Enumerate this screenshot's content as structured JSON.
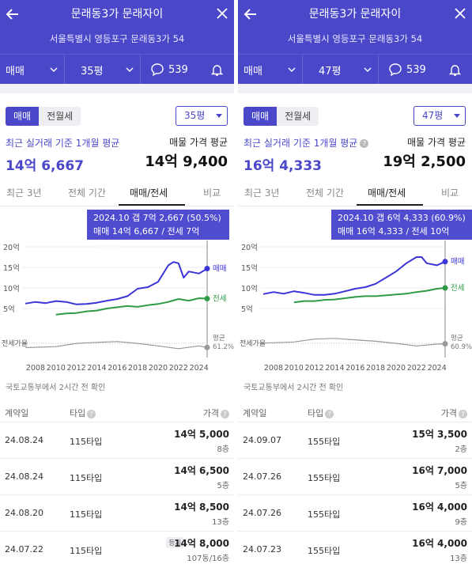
{
  "panels": [
    {
      "title": "문래동3가 문래자이",
      "address": "서울특별시 영등포구 문래동3가 54",
      "toolbar": {
        "deal_type": "매매",
        "size": "35평",
        "comment_count": "539"
      },
      "toggle": {
        "sale": "매매",
        "rent": "전월세"
      },
      "size_select": "35평",
      "recent_label": "최근 실거래 기준 1개월 평균",
      "recent_value": "14억 6,667",
      "ask_label": "매물 가격 평균",
      "ask_value": "14억 9,400",
      "tabs": [
        "최근 3년",
        "전체 기간",
        "매매/전세",
        "비교"
      ],
      "tooltip": {
        "line1": "2024.10  갭 7억 2,667 (50.5%)",
        "line2": "매매 14억 6,667 / 전세 7억 4,000"
      },
      "source": "국토교통부에서 2시간 전 확인",
      "table_headers": {
        "date": "계약일",
        "type": "타입",
        "price": "가격"
      },
      "rows": [
        {
          "date": "24.08.24",
          "type": "115타입",
          "price": "14억 5,000",
          "floor": "8층",
          "tag": ""
        },
        {
          "date": "24.08.24",
          "type": "115타입",
          "price": "14억 6,500",
          "floor": "5층",
          "tag": ""
        },
        {
          "date": "24.08.20",
          "type": "115타입",
          "price": "14억 8,500",
          "floor": "13층",
          "tag": ""
        },
        {
          "date": "24.07.22",
          "type": "115타입",
          "price": "14억 8,000",
          "floor": "107동/16층",
          "tag": "등기"
        }
      ]
    },
    {
      "title": "문래동3가 문래자이",
      "address": "서울특별시 영등포구 문래동3가 54",
      "toolbar": {
        "deal_type": "매매",
        "size": "47평",
        "comment_count": "539"
      },
      "toggle": {
        "sale": "매매",
        "rent": "전월세"
      },
      "size_select": "47평",
      "recent_label": "최근 실거래 기준 1개월 평균",
      "recent_value": "16억 4,333",
      "ask_label": "매물 가격 평균",
      "ask_value": "19억 2,500",
      "tabs": [
        "최근 3년",
        "전체 기간",
        "매매/전세",
        "비교"
      ],
      "tooltip": {
        "line1": "2024.10  갭 6억 4,333 (60.9%)",
        "line2": "매매 16억 4,333 / 전세 10억"
      },
      "source": "국토교통부에서 2시간 전 확인",
      "table_headers": {
        "date": "계약일",
        "type": "타입",
        "price": "가격"
      },
      "rows": [
        {
          "date": "24.09.07",
          "type": "155타입",
          "price": "15억 3,500",
          "floor": "2층",
          "tag": ""
        },
        {
          "date": "24.07.26",
          "type": "155타입",
          "price": "16억 7,000",
          "floor": "5층",
          "tag": ""
        },
        {
          "date": "24.07.26",
          "type": "155타입",
          "price": "16억 4,000",
          "floor": "9층",
          "tag": ""
        },
        {
          "date": "24.07.23",
          "type": "155타입",
          "price": "16억 4,000",
          "floor": "13층",
          "tag": ""
        }
      ]
    }
  ],
  "chart_data": [
    {
      "type": "line",
      "x_ticks": [
        "2008",
        "2010",
        "2012",
        "2014",
        "2016",
        "2018",
        "2020",
        "2022",
        "2024"
      ],
      "y_ticks": [
        "20억",
        "15억",
        "10억",
        "5억"
      ],
      "ylim": [
        0,
        20
      ],
      "series": [
        {
          "name": "매매",
          "x": [
            2007,
            2008,
            2009,
            2010,
            2011,
            2012,
            2013,
            2014,
            2015,
            2016,
            2017,
            2018,
            2019,
            2020,
            2021,
            2021.5,
            2022,
            2022.5,
            2023,
            2024,
            2024.8
          ],
          "values": [
            6.2,
            6.6,
            6.3,
            6.8,
            6.6,
            6.0,
            6.1,
            6.4,
            6.9,
            7.3,
            8.0,
            9.8,
            10.2,
            11.5,
            15.5,
            16.3,
            16.0,
            12.5,
            14.0,
            13.5,
            14.7
          ]
        },
        {
          "name": "전세",
          "x": [
            2010,
            2011,
            2012,
            2013,
            2014,
            2015,
            2016,
            2017,
            2018,
            2019,
            2020,
            2021,
            2022,
            2023,
            2024,
            2024.8
          ],
          "values": [
            3.5,
            3.8,
            3.9,
            4.3,
            4.5,
            5.0,
            5.3,
            5.6,
            5.4,
            5.8,
            6.1,
            6.6,
            7.3,
            6.9,
            7.5,
            7.4
          ]
        },
        {
          "name": "전세가율",
          "x": [
            2007,
            2010,
            2012,
            2014,
            2016,
            2018,
            2020,
            2022,
            2024,
            2024.8
          ],
          "values": [
            50,
            53,
            62,
            65,
            67,
            62,
            55,
            47,
            55,
            50.5
          ]
        }
      ],
      "labels": {
        "sale": "매매",
        "rent": "전세",
        "ratio": "전세가율",
        "avg": "평균",
        "avg_value": "61.2%"
      }
    },
    {
      "type": "line",
      "x_ticks": [
        "2008",
        "2010",
        "2012",
        "2014",
        "2016",
        "2018",
        "2020",
        "2022",
        "2024"
      ],
      "y_ticks": [
        "20억",
        "15억",
        "10억",
        "5억"
      ],
      "ylim": [
        0,
        20
      ],
      "series": [
        {
          "name": "매매",
          "x": [
            2007,
            2008,
            2009,
            2010,
            2011,
            2012,
            2013,
            2014,
            2015,
            2016,
            2017,
            2018,
            2019,
            2020,
            2021,
            2022,
            2022.5,
            2023,
            2024,
            2024.8
          ],
          "values": [
            8.5,
            9.0,
            8.6,
            9.2,
            8.8,
            8.3,
            8.3,
            8.6,
            9.2,
            9.8,
            10.2,
            11.0,
            12.5,
            14.0,
            16.0,
            17.5,
            17.5,
            16.0,
            15.5,
            16.4
          ]
        },
        {
          "name": "전세",
          "x": [
            2010,
            2011,
            2012,
            2013,
            2014,
            2015,
            2016,
            2017,
            2018,
            2019,
            2020,
            2021,
            2022,
            2023,
            2024,
            2024.8
          ],
          "values": [
            6.5,
            6.8,
            6.8,
            7.1,
            7.2,
            7.5,
            7.8,
            8.0,
            8.0,
            8.2,
            8.4,
            8.6,
            9.0,
            9.3,
            9.8,
            10.0
          ]
        },
        {
          "name": "전세가율",
          "x": [
            2007,
            2010,
            2012,
            2014,
            2016,
            2018,
            2020,
            2022,
            2024,
            2024.8
          ],
          "values": [
            63,
            66,
            74,
            76,
            72,
            68,
            62,
            55,
            60,
            60.9
          ]
        }
      ],
      "labels": {
        "sale": "매매",
        "rent": "전세",
        "ratio": "전세가율",
        "avg": "평균",
        "avg_value": "60.9%"
      }
    }
  ],
  "colors": {
    "brand": "#4a47c9",
    "sale_line": "#3b34d6",
    "rent_line": "#2f9b46",
    "ratio_line": "#999999"
  }
}
